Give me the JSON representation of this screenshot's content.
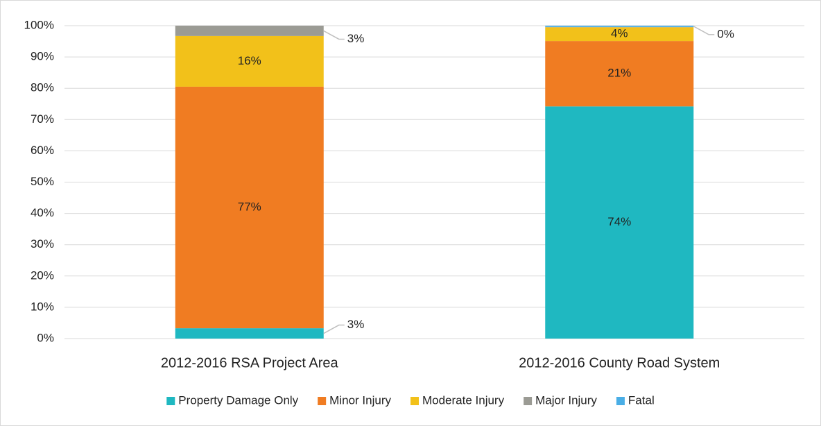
{
  "chart_data": {
    "type": "stacked_bar_100",
    "categories": [
      "2012-2016 RSA Project Area",
      "2012-2016 County Road System"
    ],
    "series": [
      {
        "name": "Property Damage Only",
        "color": "#1fb8c1",
        "values": [
          3.3,
          74.2
        ],
        "value_labels": [
          "3%",
          "74%"
        ]
      },
      {
        "name": "Minor Injury",
        "color": "#f07c22",
        "values": [
          77.2,
          20.9
        ],
        "value_labels": [
          "77%",
          "21%"
        ]
      },
      {
        "name": "Moderate Injury",
        "color": "#f2c11a",
        "values": [
          16.2,
          4.4
        ],
        "value_labels": [
          "16%",
          "4%"
        ]
      },
      {
        "name": "Major Injury",
        "color": "#9b9b94",
        "values": [
          3.3,
          0.1
        ],
        "value_labels": [
          "3%",
          null
        ]
      },
      {
        "name": "Fatal",
        "color": "#4aaee6",
        "values": [
          0,
          0.4
        ],
        "value_labels": [
          null,
          "0%"
        ]
      }
    ],
    "ylim": [
      0,
      100
    ],
    "yticks": [
      {
        "value": 0,
        "label": "0%"
      },
      {
        "value": 10,
        "label": "10%"
      },
      {
        "value": 20,
        "label": "20%"
      },
      {
        "value": 30,
        "label": "30%"
      },
      {
        "value": 40,
        "label": "40%"
      },
      {
        "value": 50,
        "label": "50%"
      },
      {
        "value": 60,
        "label": "60%"
      },
      {
        "value": 70,
        "label": "70%"
      },
      {
        "value": 80,
        "label": "80%"
      },
      {
        "value": 90,
        "label": "90%"
      },
      {
        "value": 100,
        "label": "100%"
      }
    ],
    "grid": true,
    "legend": "bottom"
  }
}
